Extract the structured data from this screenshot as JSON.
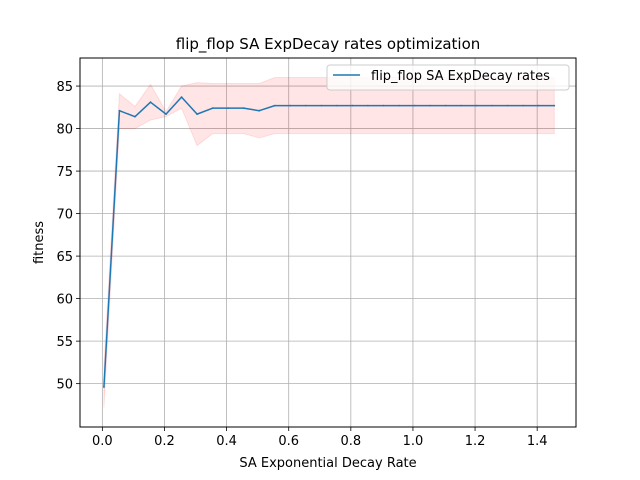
{
  "chart_data": {
    "type": "line",
    "title": "flip_flop SA ExpDecay rates optimization",
    "xlabel": "SA Exponential Decay Rate",
    "ylabel": "fitness",
    "xlim": [
      -0.072,
      1.525
    ],
    "ylim": [
      44.9,
      88.3
    ],
    "xticks": [
      0.0,
      0.2,
      0.4,
      0.6,
      0.8,
      1.0,
      1.2,
      1.4
    ],
    "xtick_labels": [
      "0.0",
      "0.2",
      "0.4",
      "0.6",
      "0.8",
      "1.0",
      "1.2",
      "1.4"
    ],
    "yticks": [
      50,
      55,
      60,
      65,
      70,
      75,
      80,
      85
    ],
    "ytick_labels": [
      "50",
      "55",
      "60",
      "65",
      "70",
      "75",
      "80",
      "85"
    ],
    "grid": true,
    "legend_position": "top-right",
    "series": [
      {
        "name": "flip_flop SA ExpDecay rates",
        "color": "#1f77b4",
        "band_color": "#ff0000",
        "x": [
          0.005,
          0.055,
          0.105,
          0.155,
          0.205,
          0.255,
          0.305,
          0.355,
          0.405,
          0.455,
          0.505,
          0.555,
          0.605,
          0.655,
          0.705,
          0.755,
          0.805,
          0.855,
          0.905,
          0.955,
          1.005,
          1.055,
          1.105,
          1.155,
          1.205,
          1.255,
          1.305,
          1.355,
          1.405,
          1.455
        ],
        "y": [
          49.6,
          82.1,
          81.4,
          83.1,
          81.7,
          83.7,
          81.7,
          82.4,
          82.4,
          82.4,
          82.1,
          82.7,
          82.7,
          82.7,
          82.7,
          82.7,
          82.7,
          82.7,
          82.7,
          82.7,
          82.7,
          82.7,
          82.7,
          82.7,
          82.7,
          82.7,
          82.7,
          82.7,
          82.7,
          82.7
        ],
        "lower": [
          47.2,
          80.0,
          80.0,
          81.0,
          81.4,
          82.4,
          78.0,
          79.4,
          79.4,
          79.4,
          78.9,
          79.4,
          79.4,
          79.4,
          79.4,
          79.4,
          79.4,
          79.4,
          79.4,
          79.4,
          79.4,
          79.4,
          79.4,
          79.4,
          79.4,
          79.4,
          79.4,
          79.4,
          79.4,
          79.4
        ],
        "upper": [
          52.0,
          84.1,
          82.6,
          85.2,
          82.0,
          85.0,
          85.4,
          85.3,
          85.3,
          85.3,
          85.3,
          86.0,
          86.0,
          86.0,
          86.0,
          86.0,
          86.0,
          86.0,
          86.0,
          86.0,
          86.0,
          86.0,
          86.0,
          86.0,
          86.0,
          86.0,
          86.0,
          86.0,
          86.0,
          86.0
        ]
      }
    ]
  }
}
